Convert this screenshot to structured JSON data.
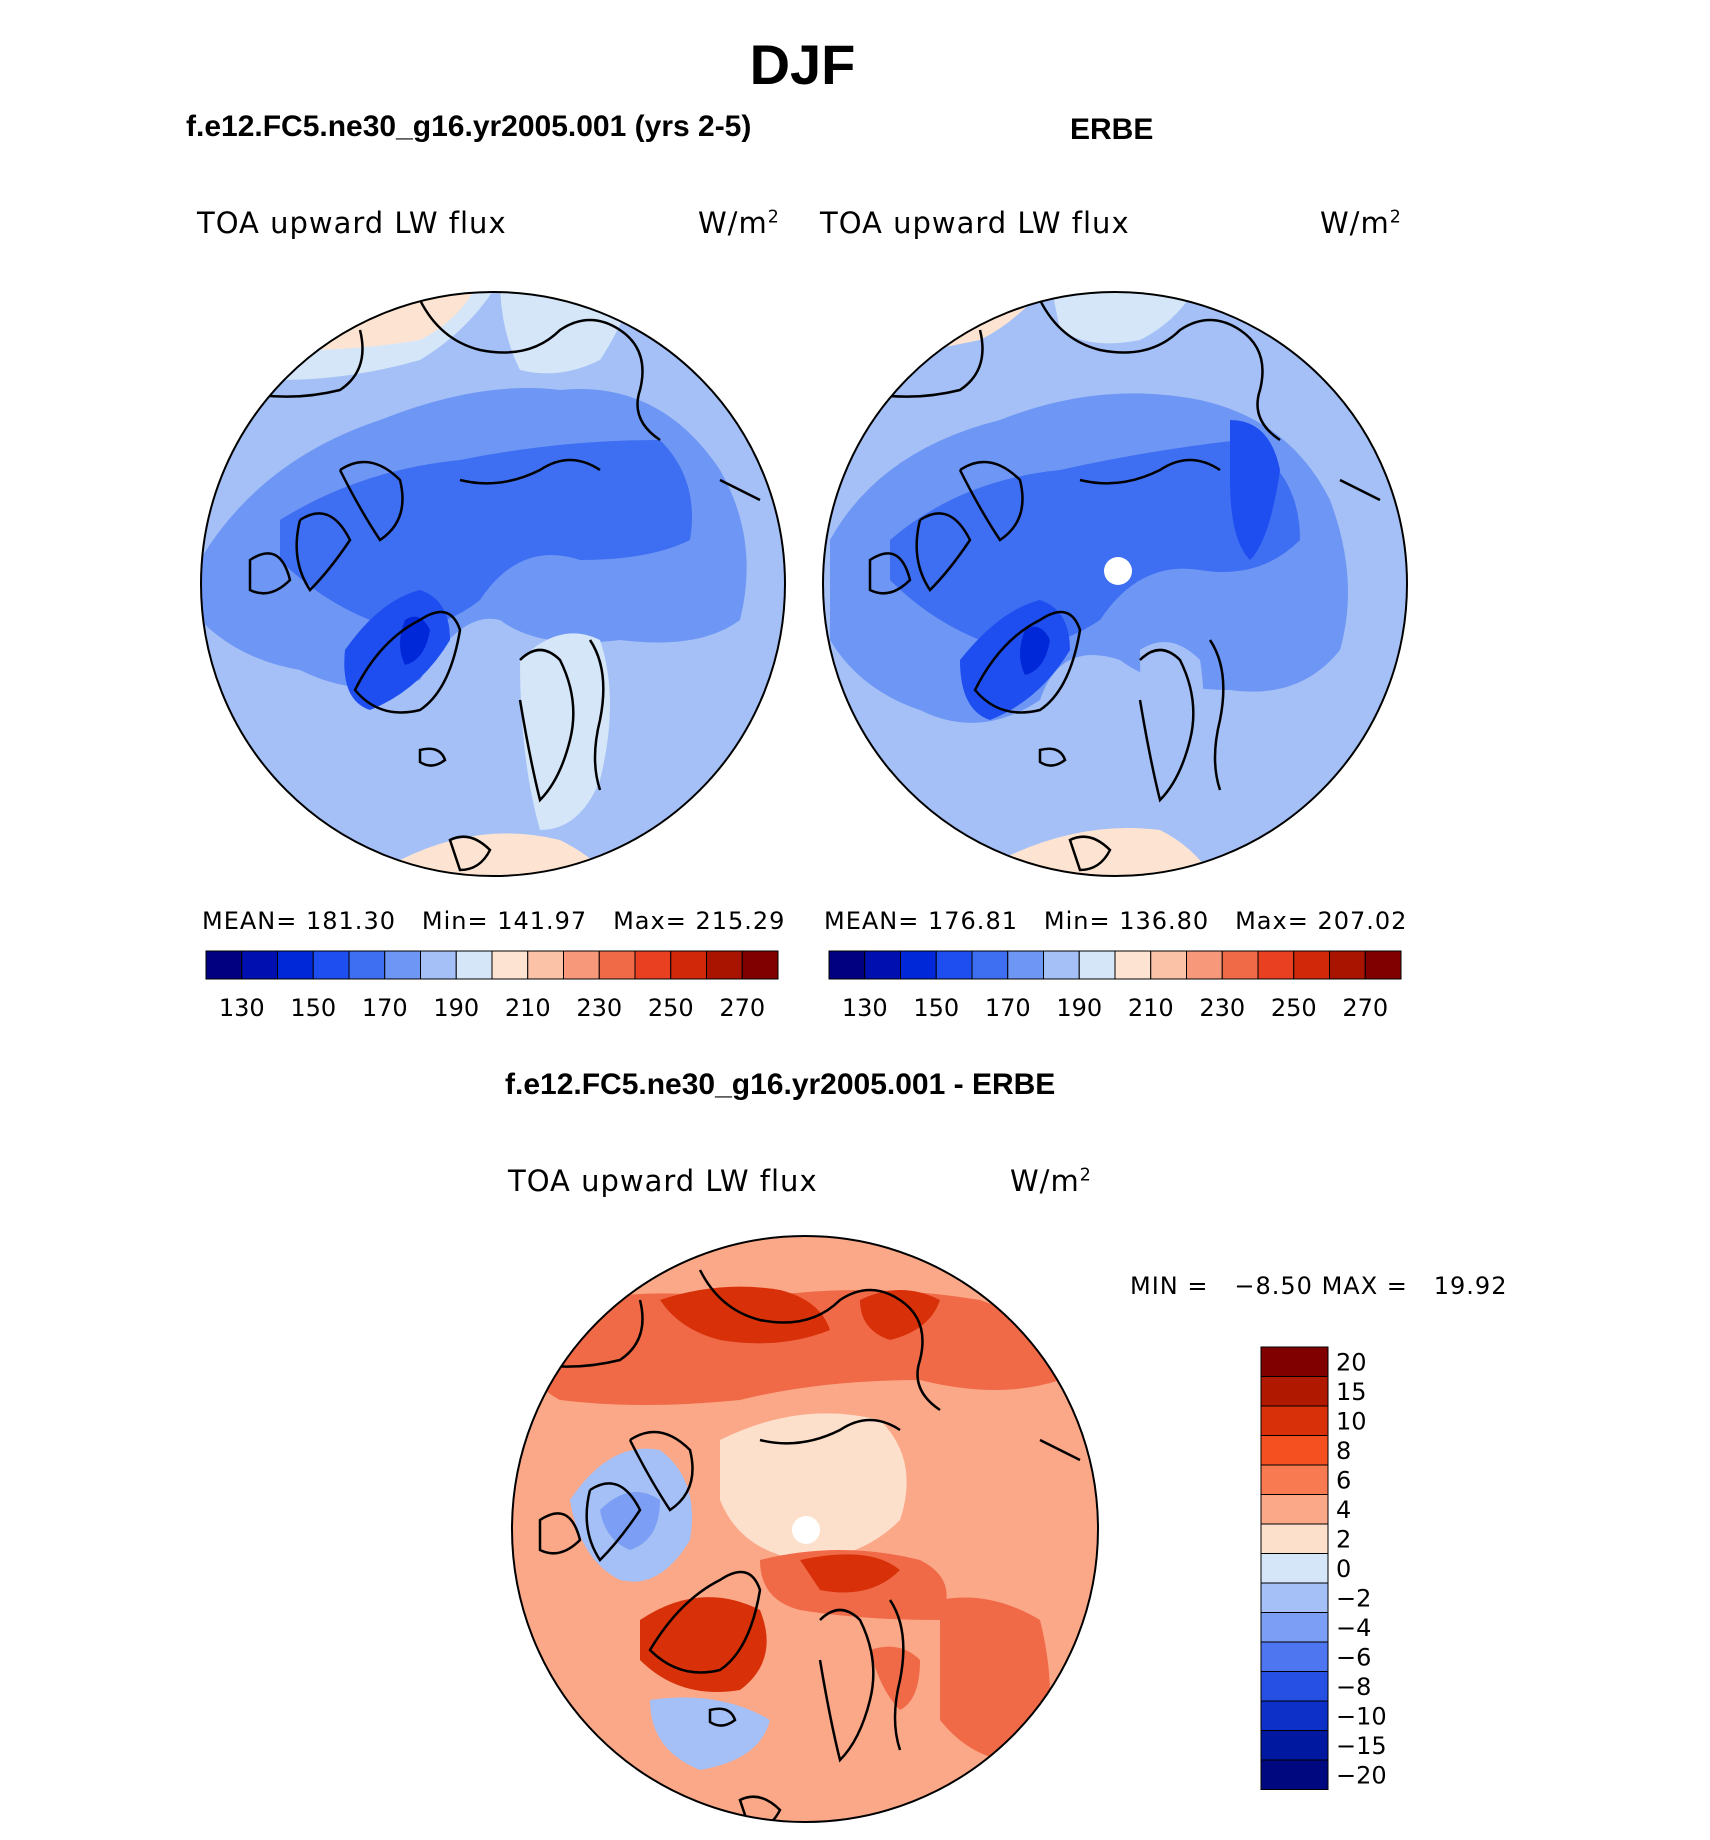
{
  "page": {
    "season": "DJF",
    "top_left_case": "f.e12.FC5.ne30_g16.yr2005.001 (yrs 2-5)",
    "top_right_case": "ERBE",
    "diff_title": "f.e12.FC5.ne30_g16.yr2005.001 - ERBE"
  },
  "colors": {
    "abs_scale": [
      "#000080",
      "#0010b0",
      "#0028d8",
      "#1e4ef0",
      "#3e6ef2",
      "#6e96f4",
      "#a4c0f6",
      "#d4e6f8",
      "#fde4d2",
      "#fcc2a8",
      "#f8987a",
      "#f06a48",
      "#e84020",
      "#d02808",
      "#a81400",
      "#800000"
    ],
    "diff_scale": [
      "#800000",
      "#b01800",
      "#d83008",
      "#f45020",
      "#f87a50",
      "#fba888",
      "#fde0cc",
      "#d4e6f8",
      "#a4c0f6",
      "#7c9ef4",
      "#4e76f0",
      "#2650e4",
      "#0c30c8",
      "#0018a0",
      "#000880"
    ]
  },
  "chart_data": [
    {
      "type": "heatmap",
      "projection": "north-polar-stereographic",
      "panel": "model",
      "title": "f.e12.FC5.ne30_g16.yr2005.001 (yrs 2-5)",
      "variable": "TOA upward LW flux",
      "units": "W/m2",
      "units_base": "W/m",
      "units_exp": "2",
      "stats": {
        "mean_label": "MEAN=",
        "mean": "181.30",
        "min_label": "Min=",
        "min": "141.97",
        "max_label": "Max=",
        "max": "215.29"
      },
      "colorbar_ticks": [
        "130",
        "150",
        "170",
        "190",
        "210",
        "230",
        "250",
        "270"
      ]
    },
    {
      "type": "heatmap",
      "projection": "north-polar-stereographic",
      "panel": "obs",
      "title": "ERBE",
      "variable": "TOA upward LW flux",
      "units": "W/m2",
      "units_base": "W/m",
      "units_exp": "2",
      "stats": {
        "mean_label": "MEAN=",
        "mean": "176.81",
        "min_label": "Min=",
        "min": "136.80",
        "max_label": "Max=",
        "max": "207.02"
      },
      "colorbar_ticks": [
        "130",
        "150",
        "170",
        "190",
        "210",
        "230",
        "250",
        "270"
      ]
    },
    {
      "type": "heatmap",
      "projection": "north-polar-stereographic",
      "panel": "difference",
      "title": "f.e12.FC5.ne30_g16.yr2005.001 - ERBE",
      "variable": "TOA upward LW flux",
      "units": "W/m2",
      "units_base": "W/m",
      "units_exp": "2",
      "stats": {
        "min_label": "MIN =",
        "min": "−8.50",
        "max_label": "MAX =",
        "max": "19.92"
      },
      "colorbar_labels": [
        "20",
        "15",
        "10",
        "8",
        "6",
        "4",
        "2",
        "0",
        "−2",
        "−4",
        "−6",
        "−8",
        "−10",
        "−15",
        "−20"
      ]
    }
  ]
}
